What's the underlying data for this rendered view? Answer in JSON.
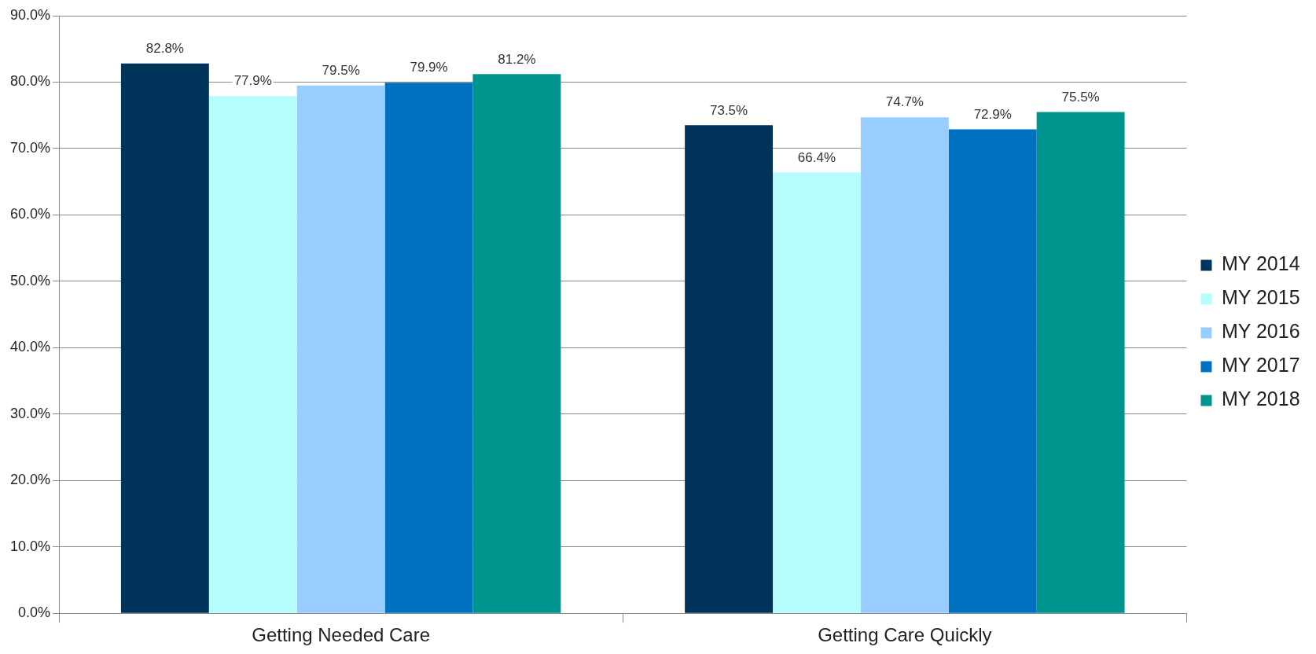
{
  "chart_data": {
    "type": "bar",
    "categories": [
      "Getting Needed Care",
      "Getting Care Quickly"
    ],
    "series": [
      {
        "name": "MY 2014",
        "color": "#003359",
        "values": [
          82.8,
          73.5
        ],
        "value_labels": [
          "82.8%",
          "73.5%"
        ]
      },
      {
        "name": "MY 2015",
        "color": "#b7fcfc",
        "values": [
          77.9,
          66.4
        ],
        "value_labels": [
          "77.9%",
          "66.4%"
        ]
      },
      {
        "name": "MY 2016",
        "color": "#99ccff",
        "values": [
          79.5,
          74.7
        ],
        "value_labels": [
          "79.5%",
          "74.7%"
        ]
      },
      {
        "name": "MY 2017",
        "color": "#0070c0",
        "values": [
          79.9,
          72.9
        ],
        "value_labels": [
          "79.9%",
          "72.9%"
        ]
      },
      {
        "name": "MY 2018",
        "color": "#00948f",
        "values": [
          81.2,
          75.5
        ],
        "value_labels": [
          "81.2%",
          "75.5%"
        ]
      }
    ],
    "ylim": [
      0,
      90
    ],
    "yticks": [
      {
        "value": 0,
        "label": "0.0%"
      },
      {
        "value": 10,
        "label": "10.0%"
      },
      {
        "value": 20,
        "label": "20.0%"
      },
      {
        "value": 30,
        "label": "30.0%"
      },
      {
        "value": 40,
        "label": "40.0%"
      },
      {
        "value": 50,
        "label": "50.0%"
      },
      {
        "value": 60,
        "label": "60.0%"
      },
      {
        "value": 70,
        "label": "70.0%"
      },
      {
        "value": 80,
        "label": "80.0%"
      },
      {
        "value": 90,
        "label": "90.0%"
      }
    ],
    "grid": "y",
    "legend": "right"
  }
}
